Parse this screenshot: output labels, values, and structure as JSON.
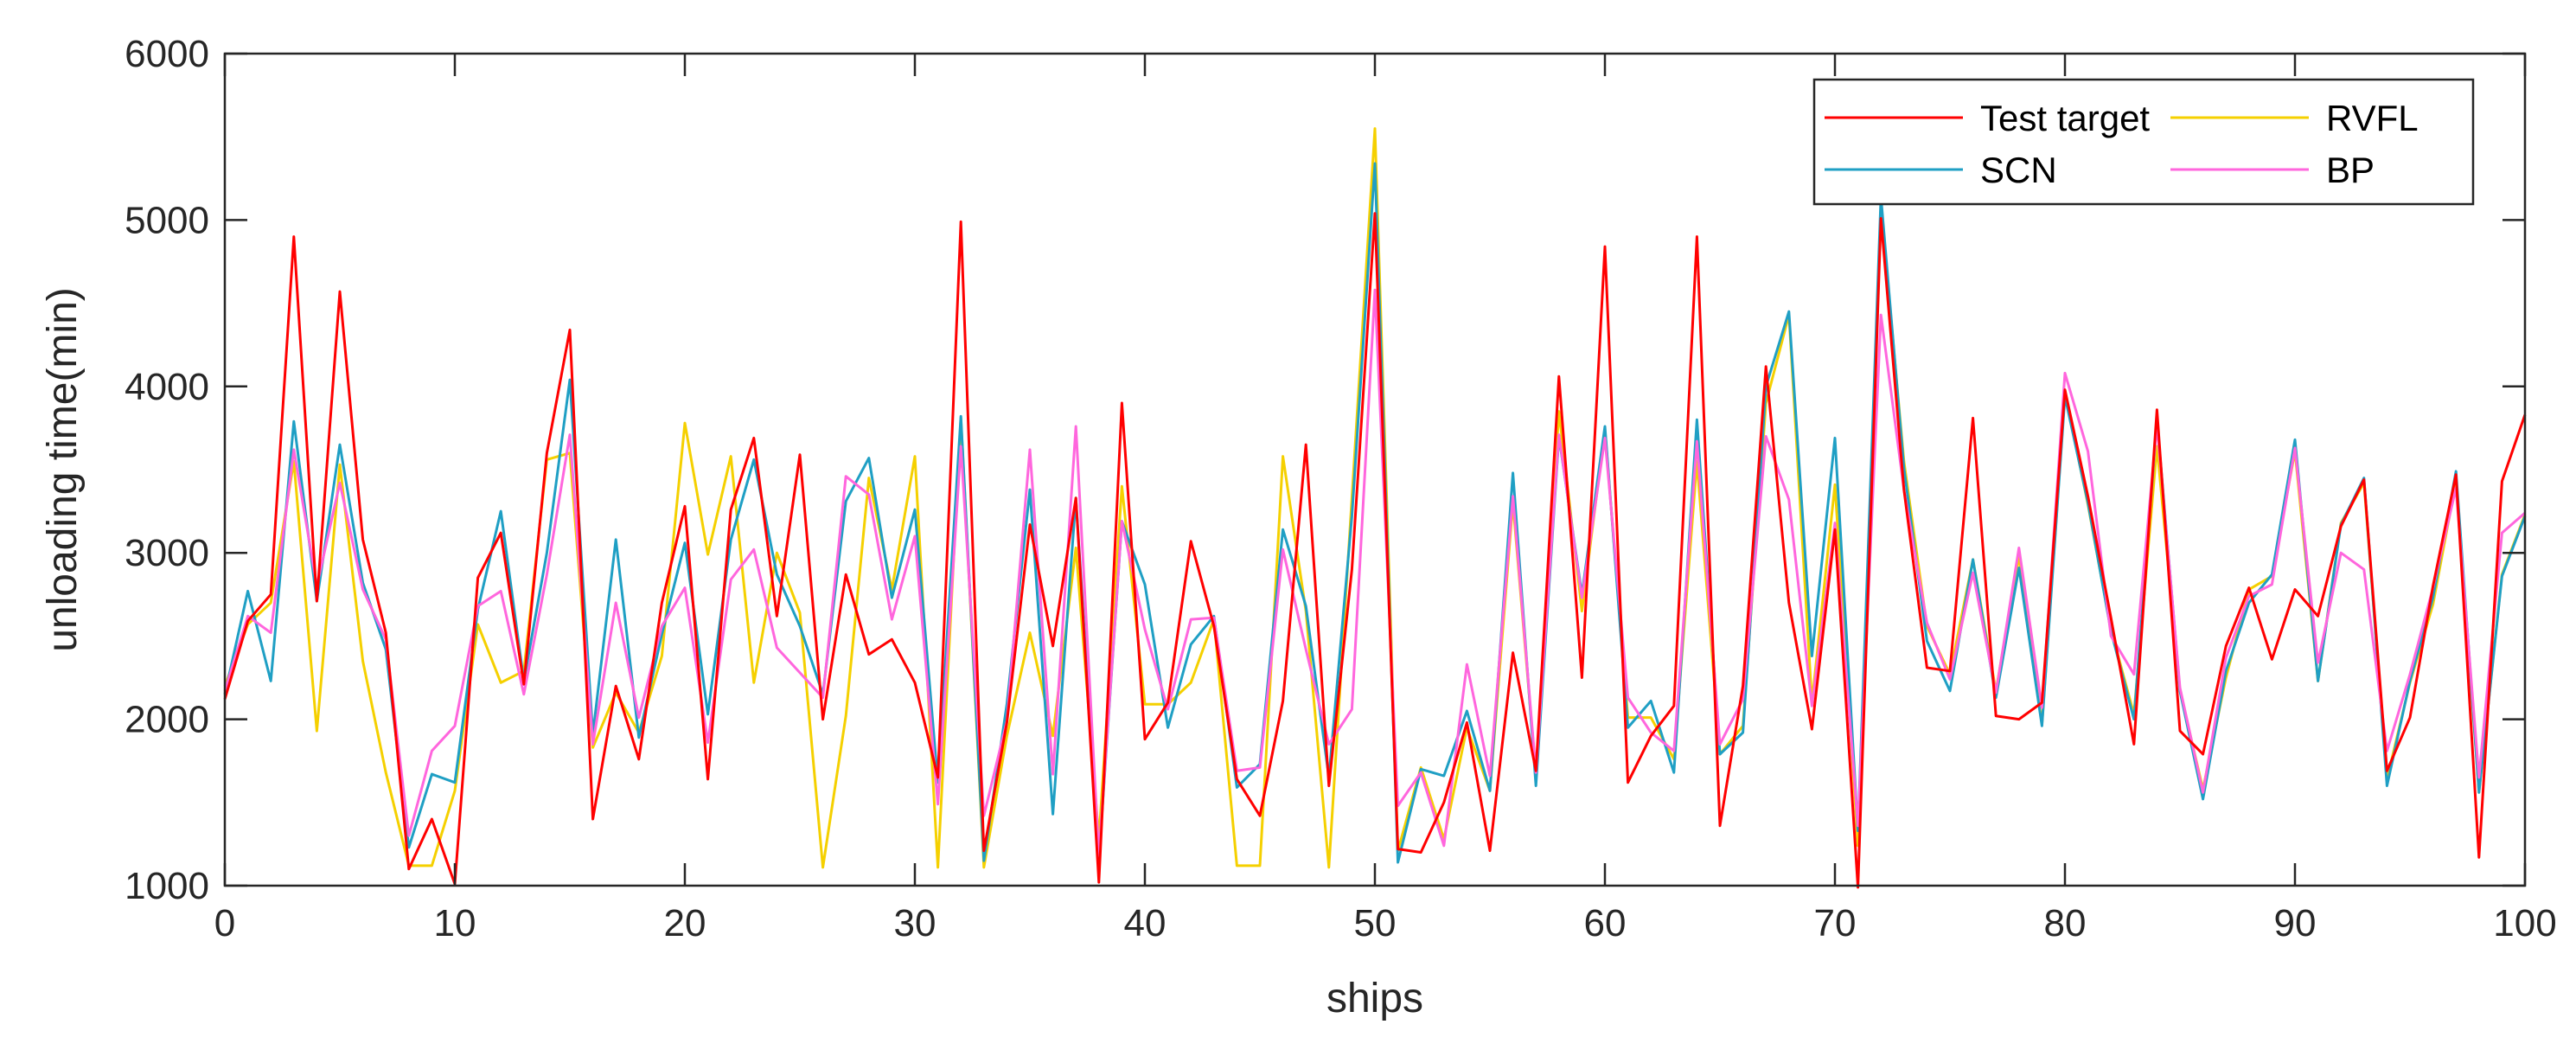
{
  "chart_data": {
    "type": "line",
    "xlabel": "ships",
    "ylabel": "unloading time(min)",
    "xlim": [
      0,
      100
    ],
    "ylim": [
      1000,
      6000
    ],
    "xticks": [
      0,
      10,
      20,
      30,
      40,
      50,
      60,
      70,
      80,
      90,
      100
    ],
    "yticks": [
      1000,
      2000,
      3000,
      4000,
      5000,
      6000
    ],
    "grid": false,
    "legend_position": "top-right",
    "x": [
      0,
      1,
      2,
      3,
      4,
      5,
      6,
      7,
      8,
      9,
      10,
      11,
      12,
      13,
      14,
      15,
      16,
      17,
      18,
      19,
      20,
      21,
      22,
      23,
      24,
      25,
      26,
      27,
      28,
      29,
      30,
      31,
      32,
      33,
      34,
      35,
      36,
      37,
      38,
      39,
      40,
      41,
      42,
      43,
      44,
      45,
      46,
      47,
      48,
      49,
      50,
      51,
      52,
      53,
      54,
      55,
      56,
      57,
      58,
      59,
      60,
      61,
      62,
      63,
      64,
      65,
      66,
      67,
      68,
      69,
      70,
      71,
      72,
      73,
      74,
      75,
      76,
      77,
      78,
      79,
      80,
      81,
      82,
      83,
      84,
      85,
      86,
      87,
      88,
      89,
      90,
      91,
      92,
      93,
      94,
      95,
      96,
      97,
      98,
      99,
      100
    ],
    "series": [
      {
        "name": "Test target",
        "color": "#ff0000",
        "values": [
          2120,
          2590,
          2750,
          4900,
          2710,
          4570,
          3080,
          2520,
          1100,
          1400,
          1010,
          2850,
          3120,
          2210,
          3600,
          4340,
          1400,
          2200,
          1760,
          2700,
          3280,
          1640,
          3260,
          3690,
          2620,
          3590,
          2000,
          2870,
          2390,
          2480,
          2220,
          1650,
          4990,
          1210,
          1980,
          3170,
          2440,
          3330,
          1020,
          3900,
          1880,
          2100,
          3070,
          2560,
          1640,
          1420,
          2110,
          3650,
          1600,
          2900,
          5040,
          1220,
          1200,
          1500,
          1980,
          1210,
          2400,
          1690,
          4060,
          2250,
          4840,
          1620,
          1900,
          2080,
          4900,
          1360,
          2200,
          4120,
          2700,
          1940,
          3140,
          990,
          5010,
          3380,
          2310,
          2290,
          3810,
          2020,
          2000,
          2100,
          3980,
          3340,
          2610,
          1850,
          3860,
          1930,
          1790,
          2440,
          2790,
          2360,
          2780,
          2620,
          3160,
          3440,
          1690,
          2010,
          2800,
          3470,
          1170,
          3430,
          3830
        ]
      },
      {
        "name": "RVFL",
        "color": "#f5d000",
        "values": [
          2200,
          2570,
          2700,
          3550,
          1930,
          3530,
          2350,
          1680,
          1120,
          1120,
          1570,
          2570,
          2220,
          2290,
          3560,
          3600,
          1830,
          2160,
          1920,
          2380,
          3780,
          2990,
          3580,
          2220,
          3000,
          2640,
          1110,
          2020,
          3450,
          2780,
          3580,
          1110,
          3810,
          1110,
          1900,
          2520,
          1900,
          3030,
          1280,
          3400,
          2090,
          2090,
          2220,
          2600,
          1120,
          1120,
          3580,
          2650,
          1110,
          3330,
          5550,
          1210,
          1710,
          1280,
          1950,
          1570,
          3300,
          1670,
          3850,
          2650,
          3740,
          2010,
          2010,
          1760,
          3550,
          1790,
          1960,
          3900,
          4430,
          2100,
          3410,
          1240,
          5080,
          3550,
          2560,
          2270,
          2960,
          2170,
          2980,
          1970,
          3960,
          3290,
          2540,
          2030,
          3640,
          2170,
          1580,
          2250,
          2780,
          2860,
          3610,
          2230,
          3180,
          3420,
          1640,
          2220,
          2690,
          3430,
          1560,
          2870,
          3230
        ]
      },
      {
        "name": "SCN",
        "color": "#1f9fc4",
        "values": [
          2150,
          2770,
          2230,
          3790,
          2710,
          3650,
          2820,
          2420,
          1230,
          1670,
          1620,
          2660,
          3250,
          2230,
          3000,
          4040,
          1910,
          3080,
          1890,
          2510,
          3060,
          2030,
          3080,
          3560,
          2870,
          2560,
          2150,
          3310,
          3570,
          2730,
          3260,
          1620,
          3820,
          1150,
          2090,
          3380,
          1430,
          3330,
          1160,
          3190,
          2810,
          1950,
          2450,
          2620,
          1590,
          1730,
          3140,
          2680,
          1650,
          3220,
          5340,
          1140,
          1700,
          1660,
          2050,
          1570,
          3480,
          1600,
          3700,
          2750,
          3760,
          1950,
          2110,
          1680,
          3800,
          1790,
          1920,
          4000,
          4450,
          2380,
          3690,
          1330,
          5140,
          3510,
          2470,
          2170,
          2960,
          2130,
          2910,
          1960,
          3940,
          3300,
          2530,
          2000,
          3800,
          2170,
          1520,
          2290,
          2700,
          2870,
          3680,
          2230,
          3170,
          3450,
          1600,
          2230,
          2730,
          3490,
          1560,
          2860,
          3220
        ]
      },
      {
        "name": "BP",
        "color": "#ff66dd",
        "values": [
          2170,
          2620,
          2520,
          3620,
          2800,
          3420,
          2780,
          2480,
          1300,
          1810,
          1960,
          2680,
          2770,
          2150,
          2870,
          3710,
          1850,
          2700,
          2010,
          2560,
          2790,
          1860,
          2840,
          3020,
          2430,
          2280,
          2130,
          3460,
          3350,
          2600,
          3100,
          1490,
          3640,
          1420,
          1990,
          3620,
          1670,
          3760,
          1180,
          3190,
          2540,
          2060,
          2600,
          2610,
          1690,
          1710,
          3020,
          2420,
          1850,
          2060,
          4580,
          1480,
          1680,
          1240,
          2330,
          1660,
          3340,
          1680,
          3710,
          2730,
          3690,
          2130,
          1920,
          1810,
          3670,
          1850,
          2120,
          3700,
          3320,
          2080,
          3180,
          1360,
          4430,
          3380,
          2580,
          2240,
          2880,
          2160,
          3030,
          2070,
          4080,
          3610,
          2500,
          2270,
          3770,
          2190,
          1560,
          2370,
          2740,
          2810,
          3630,
          2340,
          3000,
          2900,
          1810,
          2270,
          2790,
          3390,
          1650,
          3120,
          3240
        ]
      }
    ]
  }
}
